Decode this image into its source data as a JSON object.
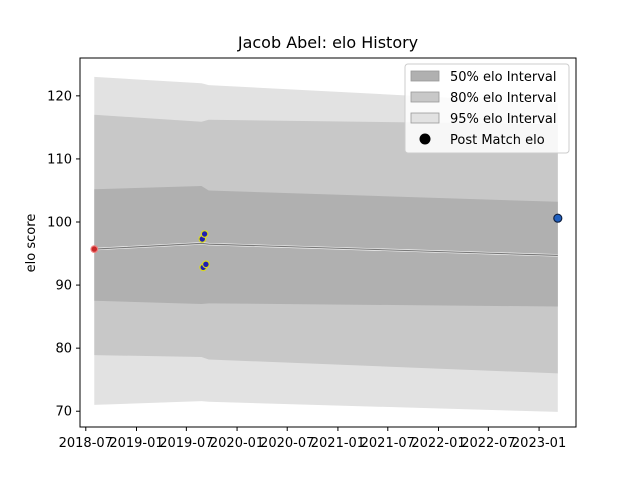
{
  "chart_data": {
    "type": "area",
    "title": "Jacob Abel: elo History",
    "xlabel": "",
    "ylabel": "elo score",
    "x_is_date": true,
    "xlim": [
      "2018-06-10",
      "2023-05-15"
    ],
    "ylim": [
      67.5,
      126
    ],
    "y_ticks": [
      70,
      80,
      90,
      100,
      110,
      120
    ],
    "x_ticks": [
      {
        "date": "2018-07-01",
        "label": "2018-07"
      },
      {
        "date": "2019-01-01",
        "label": "2019-01"
      },
      {
        "date": "2019-07-01",
        "label": "2019-07"
      },
      {
        "date": "2020-01-01",
        "label": "2020-01"
      },
      {
        "date": "2020-07-01",
        "label": "2020-07"
      },
      {
        "date": "2021-01-01",
        "label": "2021-01"
      },
      {
        "date": "2021-07-01",
        "label": "2021-07"
      },
      {
        "date": "2022-01-01",
        "label": "2022-01"
      },
      {
        "date": "2022-07-01",
        "label": "2022-07"
      },
      {
        "date": "2023-01-01",
        "label": "2023-01"
      }
    ],
    "dates": [
      "2018-08-01",
      "2019-08-25",
      "2019-09-20",
      "2023-03-10"
    ],
    "elo_mean": [
      95.7,
      96.6,
      96.5,
      94.7
    ],
    "series": [
      {
        "name": "50% elo Interval",
        "color": "#b0b0b0",
        "lower": [
          87.5,
          87.0,
          87.1,
          86.6
        ],
        "upper": [
          105.2,
          105.7,
          105.0,
          103.2
        ]
      },
      {
        "name": "80% elo Interval",
        "color": "#c8c8c8",
        "lower": [
          78.9,
          78.6,
          78.2,
          76.0
        ],
        "upper": [
          117.0,
          115.9,
          116.2,
          115.5
        ]
      },
      {
        "name": "95% elo Interval",
        "color": "#e2e2e2",
        "lower": [
          71.0,
          71.6,
          71.5,
          69.9
        ],
        "upper": [
          123.0,
          122.0,
          121.7,
          118.8
        ]
      }
    ],
    "post_match": {
      "name": "Post Match elo",
      "points": [
        {
          "date": "2018-08-01",
          "value": 95.7,
          "fill": "#c82828",
          "edge": "#f08080"
        },
        {
          "date": "2019-08-28",
          "value": 97.3,
          "fill": "#2020b0",
          "edge": "#d8d820"
        },
        {
          "date": "2019-09-05",
          "value": 98.1,
          "fill": "#2020b0",
          "edge": "#d8d820"
        },
        {
          "date": "2019-08-31",
          "value": 92.8,
          "fill": "#2020b0",
          "edge": "#d8d820"
        },
        {
          "date": "2019-09-10",
          "value": 93.3,
          "fill": "#2020b0",
          "edge": "#d8d820"
        },
        {
          "date": "2023-03-10",
          "value": 100.6,
          "fill": "#2060c0",
          "edge": "#102040"
        }
      ]
    },
    "legend_position": "upper right",
    "legend": [
      {
        "label": "50% elo Interval",
        "kind": "patch",
        "color": "#b0b0b0"
      },
      {
        "label": "80% elo Interval",
        "kind": "patch",
        "color": "#c8c8c8"
      },
      {
        "label": "95% elo Interval",
        "kind": "patch",
        "color": "#e2e2e2"
      },
      {
        "label": "Post Match elo",
        "kind": "marker",
        "color": "#000000"
      }
    ],
    "grid": false
  }
}
